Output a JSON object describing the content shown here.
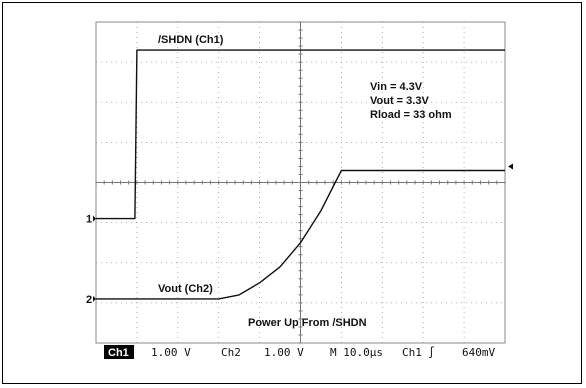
{
  "chart_data": {
    "type": "line",
    "title": "Power Up From /SHDN",
    "xlabel": "",
    "ylabel": "",
    "grid": true,
    "xlim": [
      0,
      100
    ],
    "ylim": [
      -4,
      4
    ],
    "x_unit": "µs",
    "y_unit": "div",
    "annotations": [
      "Vin = 4.3V",
      "Vout = 3.3V",
      "Rload = 33 ohm"
    ],
    "series": [
      {
        "name": "/SHDN (Ch1)",
        "x": [
          0,
          9.5,
          10,
          100
        ],
        "y": [
          -0.9,
          -0.9,
          3.3,
          3.3
        ],
        "unit": "V"
      },
      {
        "name": "Vout (Ch2)",
        "x": [
          0,
          30,
          35,
          40,
          45,
          50,
          55,
          58,
          60,
          62,
          100
        ],
        "y": [
          -2.9,
          -2.9,
          -2.8,
          -2.5,
          -2.1,
          -1.5,
          -0.7,
          -0.1,
          0.3,
          0.3,
          0.3
        ],
        "unit": "V"
      }
    ],
    "channel_markers": [
      {
        "label": "1",
        "level": -0.9
      },
      {
        "label": "2",
        "level": -2.9
      }
    ],
    "trigger_marker_level": 0.4
  },
  "status_bar": {
    "ch1_tag": "Ch1",
    "ch1_scale": "1.00 V",
    "ch2_tag": "Ch2",
    "ch2_scale": "1.00 V",
    "timebase": "M 10.0µs",
    "trigger_source": "Ch1",
    "trigger_slope": "∫",
    "trigger_level": "640mV"
  }
}
